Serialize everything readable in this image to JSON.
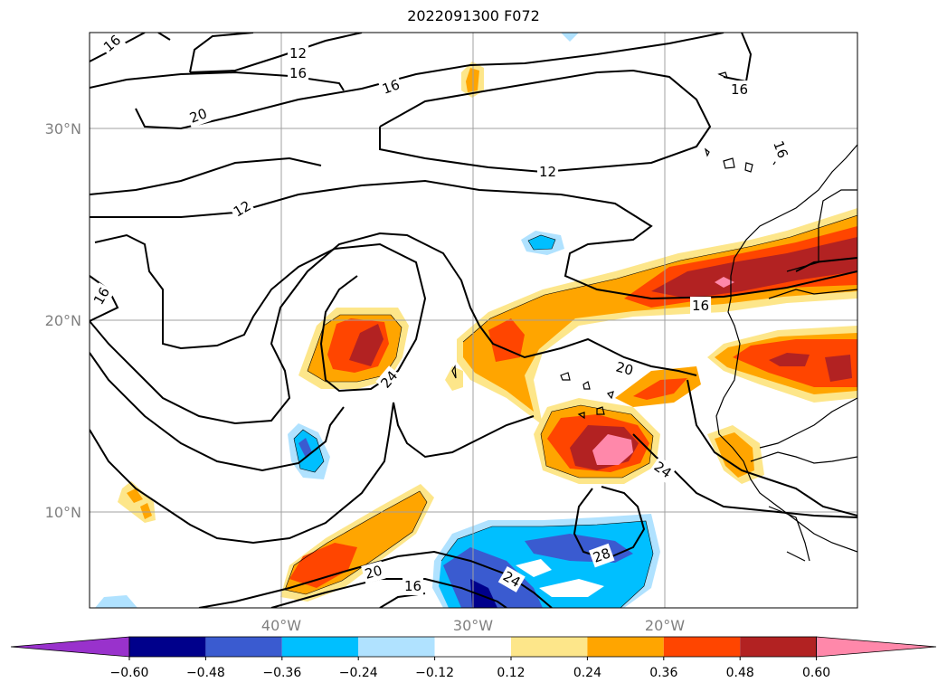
{
  "title": "2022091300 F072",
  "map": {
    "lat_labels": [
      "30°N",
      "20°N",
      "10°N"
    ],
    "lon_labels": [
      "40°W",
      "30°W",
      "20°W"
    ],
    "contour_labels": [
      "16",
      "12",
      "16",
      "16",
      "20",
      "16",
      "12",
      "12",
      "16",
      "16",
      "16",
      "24",
      "20",
      "24",
      "28",
      "20",
      "16",
      "24"
    ],
    "colors": {
      "contour": "#000000",
      "grid": "#a0a0a0",
      "coast": "#000000"
    }
  },
  "colorbar": {
    "ticks": [
      "−0.60",
      "−0.48",
      "−0.36",
      "−0.24",
      "−0.12",
      "0.12",
      "0.24",
      "0.36",
      "0.48",
      "0.60"
    ],
    "colors": [
      "#9932cc",
      "#00008b",
      "#3a5bd0",
      "#00bfff",
      "#b0e2ff",
      "#ffffff",
      "#fde68a",
      "#ffa500",
      "#ff4500",
      "#b22222",
      "#ff88aa"
    ]
  }
}
